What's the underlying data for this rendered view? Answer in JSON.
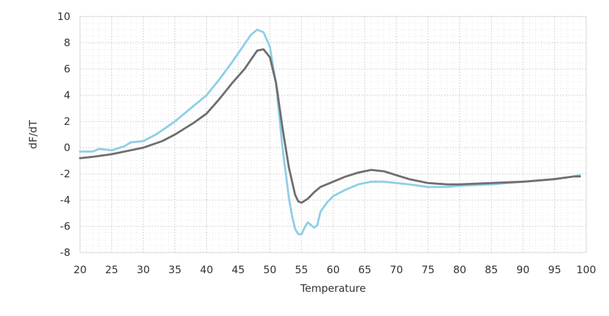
{
  "chart_data": {
    "type": "line",
    "title": "",
    "xlabel": "Temperature",
    "ylabel": "dF/dT",
    "xlim": [
      20,
      100
    ],
    "ylim": [
      -8,
      10
    ],
    "x_ticks": [
      20,
      25,
      30,
      35,
      40,
      45,
      50,
      55,
      60,
      65,
      70,
      75,
      80,
      85,
      90,
      95,
      100
    ],
    "y_ticks": [
      -8,
      -6,
      -4,
      -2,
      0,
      2,
      4,
      6,
      8,
      10
    ],
    "grid": true,
    "legend": "none",
    "series": [
      {
        "color": "#8ecfe6",
        "x": [
          20,
          22,
          23,
          25,
          27,
          28,
          30,
          32,
          35,
          38,
          40,
          42,
          44,
          46,
          47,
          48,
          49,
          50,
          51,
          52,
          53,
          53.5,
          54,
          54.5,
          55,
          55.5,
          56,
          56.5,
          57,
          57.5,
          58,
          59,
          60,
          62,
          64,
          66,
          68,
          70,
          72,
          75,
          78,
          80,
          85,
          90,
          95,
          98,
          99
        ],
        "y": [
          -0.3,
          -0.3,
          -0.1,
          -0.2,
          0.1,
          0.4,
          0.5,
          1.0,
          2.0,
          3.2,
          4.0,
          5.2,
          6.5,
          7.9,
          8.6,
          9.0,
          8.8,
          7.7,
          4.8,
          0.0,
          -3.8,
          -5.2,
          -6.2,
          -6.6,
          -6.6,
          -6.1,
          -5.7,
          -5.9,
          -6.1,
          -5.9,
          -4.9,
          -4.2,
          -3.7,
          -3.2,
          -2.8,
          -2.6,
          -2.6,
          -2.7,
          -2.8,
          -3.0,
          -3.0,
          -2.9,
          -2.8,
          -2.6,
          -2.4,
          -2.2,
          -2.1
        ]
      },
      {
        "color": "#6f6f6f",
        "x": [
          20,
          22,
          25,
          28,
          30,
          33,
          35,
          38,
          40,
          42,
          44,
          46,
          47,
          48,
          49,
          50,
          51,
          52,
          53,
          54,
          54.5,
          55,
          56,
          57,
          58,
          60,
          62,
          64,
          66,
          68,
          70,
          72,
          75,
          78,
          80,
          85,
          90,
          95,
          98,
          99
        ],
        "y": [
          -0.8,
          -0.7,
          -0.5,
          -0.2,
          0.0,
          0.5,
          1.0,
          1.9,
          2.6,
          3.7,
          4.9,
          6.0,
          6.7,
          7.4,
          7.5,
          6.9,
          4.9,
          1.5,
          -1.5,
          -3.6,
          -4.1,
          -4.2,
          -3.9,
          -3.4,
          -3.0,
          -2.6,
          -2.2,
          -1.9,
          -1.7,
          -1.8,
          -2.1,
          -2.4,
          -2.7,
          -2.8,
          -2.8,
          -2.7,
          -2.6,
          -2.4,
          -2.2,
          -2.2
        ]
      }
    ]
  }
}
